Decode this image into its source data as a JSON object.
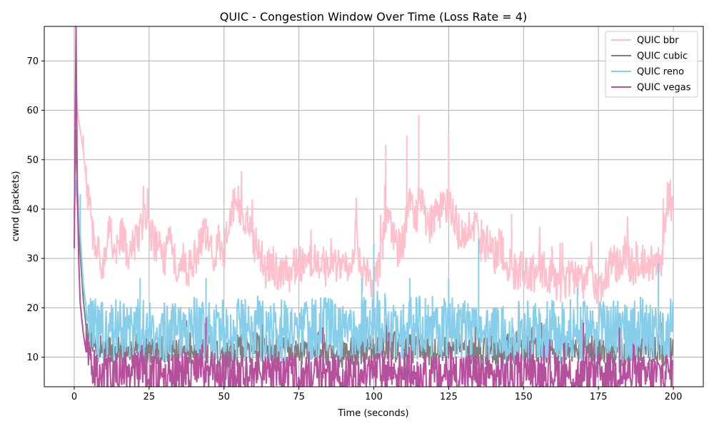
{
  "chart_data": {
    "type": "line",
    "title": "QUIC - Congestion Window Over Time (Loss Rate = 4)",
    "xlabel": "Time (seconds)",
    "ylabel": "cwnd (packets)",
    "xlim": [
      -10,
      210
    ],
    "ylim": [
      4,
      77
    ],
    "xticks": [
      0,
      25,
      50,
      75,
      100,
      125,
      150,
      175,
      200
    ],
    "yticks": [
      10,
      20,
      30,
      40,
      50,
      60,
      70
    ],
    "grid": true,
    "legend_position": "top-right",
    "series": [
      {
        "name": "QUIC bbr",
        "color": "#ffc0cb",
        "points": [
          [
            0,
            32
          ],
          [
            0.3,
            50
          ],
          [
            0.6,
            65
          ],
          [
            1,
            60
          ],
          [
            2,
            56
          ],
          [
            3,
            52
          ],
          [
            4,
            46
          ],
          [
            5,
            40
          ],
          [
            6,
            36
          ],
          [
            7,
            33
          ],
          [
            8,
            31
          ],
          [
            10,
            29
          ],
          [
            12,
            36
          ],
          [
            14,
            31
          ],
          [
            16,
            35
          ],
          [
            18,
            30
          ],
          [
            20,
            33
          ],
          [
            22,
            36
          ],
          [
            24,
            38
          ],
          [
            26,
            34
          ],
          [
            28,
            32
          ],
          [
            30,
            30
          ],
          [
            32,
            33
          ],
          [
            34,
            29
          ],
          [
            36,
            30
          ],
          [
            38,
            28
          ],
          [
            40,
            29
          ],
          [
            42,
            33
          ],
          [
            44,
            36
          ],
          [
            46,
            30
          ],
          [
            48,
            33
          ],
          [
            50,
            31
          ],
          [
            52,
            38
          ],
          [
            54,
            42
          ],
          [
            56,
            39
          ],
          [
            58,
            37
          ],
          [
            60,
            33
          ],
          [
            62,
            31
          ],
          [
            64,
            27
          ],
          [
            66,
            29
          ],
          [
            68,
            27
          ],
          [
            70,
            28
          ],
          [
            72,
            27
          ],
          [
            74,
            29
          ],
          [
            76,
            29
          ],
          [
            78,
            30
          ],
          [
            80,
            30
          ],
          [
            82,
            29
          ],
          [
            84,
            28
          ],
          [
            86,
            31
          ],
          [
            88,
            28
          ],
          [
            90,
            27
          ],
          [
            92,
            28
          ],
          [
            94,
            35
          ],
          [
            96,
            27
          ],
          [
            98,
            26
          ],
          [
            100,
            25
          ],
          [
            102,
            28
          ],
          [
            104,
            38
          ],
          [
            106,
            36
          ],
          [
            108,
            32
          ],
          [
            110,
            34
          ],
          [
            112,
            42
          ],
          [
            114,
            38
          ],
          [
            116,
            44
          ],
          [
            118,
            36
          ],
          [
            120,
            39
          ],
          [
            122,
            39
          ],
          [
            124,
            41
          ],
          [
            126,
            40
          ],
          [
            128,
            36
          ],
          [
            130,
            34
          ],
          [
            132,
            38
          ],
          [
            134,
            36
          ],
          [
            136,
            32
          ],
          [
            138,
            33
          ],
          [
            140,
            30
          ],
          [
            142,
            33
          ],
          [
            144,
            30
          ],
          [
            146,
            28
          ],
          [
            148,
            27
          ],
          [
            150,
            28
          ],
          [
            152,
            27
          ],
          [
            154,
            27
          ],
          [
            156,
            28
          ],
          [
            158,
            27
          ],
          [
            160,
            25
          ],
          [
            162,
            24
          ],
          [
            164,
            25
          ],
          [
            166,
            27
          ],
          [
            168,
            26
          ],
          [
            170,
            25
          ],
          [
            172,
            27
          ],
          [
            174,
            25
          ],
          [
            176,
            24
          ],
          [
            178,
            27
          ],
          [
            180,
            29
          ],
          [
            182,
            28
          ],
          [
            184,
            31
          ],
          [
            186,
            28
          ],
          [
            188,
            29
          ],
          [
            190,
            30
          ],
          [
            192,
            28
          ],
          [
            194,
            30
          ],
          [
            196,
            30
          ],
          [
            198,
            42
          ],
          [
            200,
            40
          ]
        ],
        "spikes": [
          [
            1,
            60
          ],
          [
            2,
            56
          ],
          [
            3,
            55
          ],
          [
            4,
            45
          ],
          [
            23,
            41
          ],
          [
            44,
            38
          ],
          [
            53,
            44
          ],
          [
            104,
            53
          ],
          [
            111,
            55
          ],
          [
            115,
            59
          ],
          [
            125,
            55
          ],
          [
            146,
            39
          ],
          [
            199,
            46
          ]
        ]
      },
      {
        "name": "QUIC cubic",
        "color": "#808080",
        "points": [
          [
            0,
            38
          ],
          [
            0.5,
            56
          ],
          [
            1,
            45
          ],
          [
            1.5,
            36
          ],
          [
            2,
            31
          ],
          [
            3,
            22
          ],
          [
            4,
            16
          ],
          [
            6,
            12
          ],
          [
            10,
            11
          ],
          [
            20,
            12
          ],
          [
            30,
            11
          ],
          [
            40,
            12
          ],
          [
            50,
            11
          ],
          [
            60,
            12
          ],
          [
            70,
            11
          ],
          [
            80,
            12
          ],
          [
            90,
            11
          ],
          [
            100,
            12
          ],
          [
            110,
            12
          ],
          [
            120,
            11
          ],
          [
            130,
            12
          ],
          [
            140,
            11
          ],
          [
            150,
            12
          ],
          [
            160,
            11
          ],
          [
            170,
            12
          ],
          [
            180,
            11
          ],
          [
            190,
            12
          ],
          [
            200,
            11
          ]
        ],
        "band": [
          8,
          14
        ],
        "spikes": [
          [
            3,
            23
          ],
          [
            105,
            17
          ],
          [
            140,
            18
          ],
          [
            156,
            17
          ],
          [
            196,
            17
          ]
        ]
      },
      {
        "name": "QUIC reno",
        "color": "#87ceeb",
        "points": [
          [
            0,
            38
          ],
          [
            0.5,
            46
          ],
          [
            1,
            41
          ],
          [
            2,
            35
          ],
          [
            3,
            25
          ],
          [
            4,
            20
          ],
          [
            6,
            16
          ],
          [
            10,
            15
          ],
          [
            20,
            16
          ],
          [
            30,
            15
          ],
          [
            40,
            16
          ],
          [
            50,
            15
          ],
          [
            60,
            16
          ],
          [
            70,
            15
          ],
          [
            80,
            16
          ],
          [
            90,
            15
          ],
          [
            100,
            17
          ],
          [
            110,
            16
          ],
          [
            120,
            16
          ],
          [
            130,
            16
          ],
          [
            140,
            15
          ],
          [
            150,
            15
          ],
          [
            160,
            15
          ],
          [
            170,
            15
          ],
          [
            180,
            15
          ],
          [
            190,
            16
          ],
          [
            200,
            16
          ]
        ],
        "band": [
          10,
          22
        ],
        "spikes": [
          [
            2,
            43
          ],
          [
            22,
            26
          ],
          [
            44,
            26
          ],
          [
            96,
            26
          ],
          [
            100,
            33
          ],
          [
            112,
            26
          ],
          [
            125,
            26
          ],
          [
            135,
            34
          ],
          [
            168,
            24
          ],
          [
            195,
            29
          ]
        ]
      },
      {
        "name": "QUIC vegas",
        "color": "#b64f9c",
        "points": [
          [
            0,
            32
          ],
          [
            0.3,
            55
          ],
          [
            0.6,
            77
          ],
          [
            1,
            45
          ],
          [
            1.5,
            30
          ],
          [
            2,
            21
          ],
          [
            3,
            15
          ],
          [
            4,
            11
          ],
          [
            6,
            8
          ],
          [
            10,
            7
          ],
          [
            20,
            7
          ],
          [
            30,
            6
          ],
          [
            40,
            7
          ],
          [
            50,
            7
          ],
          [
            60,
            6
          ],
          [
            70,
            7
          ],
          [
            80,
            7
          ],
          [
            90,
            6
          ],
          [
            100,
            7
          ],
          [
            110,
            7
          ],
          [
            120,
            6
          ],
          [
            130,
            7
          ],
          [
            140,
            6
          ],
          [
            150,
            7
          ],
          [
            160,
            7
          ],
          [
            170,
            6
          ],
          [
            180,
            7
          ],
          [
            190,
            6
          ],
          [
            200,
            7
          ]
        ],
        "band": [
          4,
          12
        ],
        "spikes": [
          [
            2,
            21
          ],
          [
            44,
            18
          ],
          [
            83,
            16
          ],
          [
            105,
            15
          ],
          [
            170,
            17
          ],
          [
            182,
            16
          ]
        ]
      }
    ]
  }
}
